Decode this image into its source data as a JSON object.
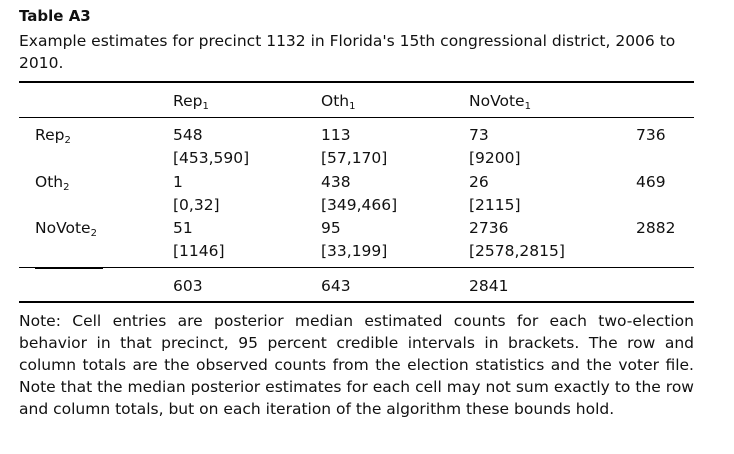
{
  "table_label": "Table A3",
  "caption": "Example estimates for precinct 1132 in Florida's 15th congressional district, 2006 to 2010.",
  "header": {
    "col1": {
      "base": "Rep",
      "sub": "1"
    },
    "col2": {
      "base": "Oth",
      "sub": "1"
    },
    "col3": {
      "base": "NoVote",
      "sub": "1"
    }
  },
  "rows": [
    {
      "label": {
        "base": "Rep",
        "sub": "2"
      },
      "values": [
        "548",
        "113",
        "73"
      ],
      "intervals": [
        "[453,590]",
        "[57,170]",
        "[9200]"
      ],
      "total": "736"
    },
    {
      "label": {
        "base": "Oth",
        "sub": "2"
      },
      "values": [
        "1",
        "438",
        "26"
      ],
      "intervals": [
        "[0,32]",
        "[349,466]",
        "[2115]"
      ],
      "total": "469"
    },
    {
      "label": {
        "base": "NoVote",
        "sub": "2"
      },
      "values": [
        "51",
        "95",
        "2736"
      ],
      "intervals": [
        "[1146]",
        "[33,199]",
        "[2578,2815]"
      ],
      "total": "2882"
    }
  ],
  "column_totals": [
    "603",
    "643",
    "2841"
  ],
  "note": "Note: Cell entries are posterior median estimated counts for each two-election behavior in that precinct, 95 percent credible intervals in brackets. The row and column totals are the observed counts from the election statistics and the voter file. Note that the median posterior estimates for each cell may not sum exactly to the row and column totals, but on each iteration of the algorithm these bounds hold."
}
